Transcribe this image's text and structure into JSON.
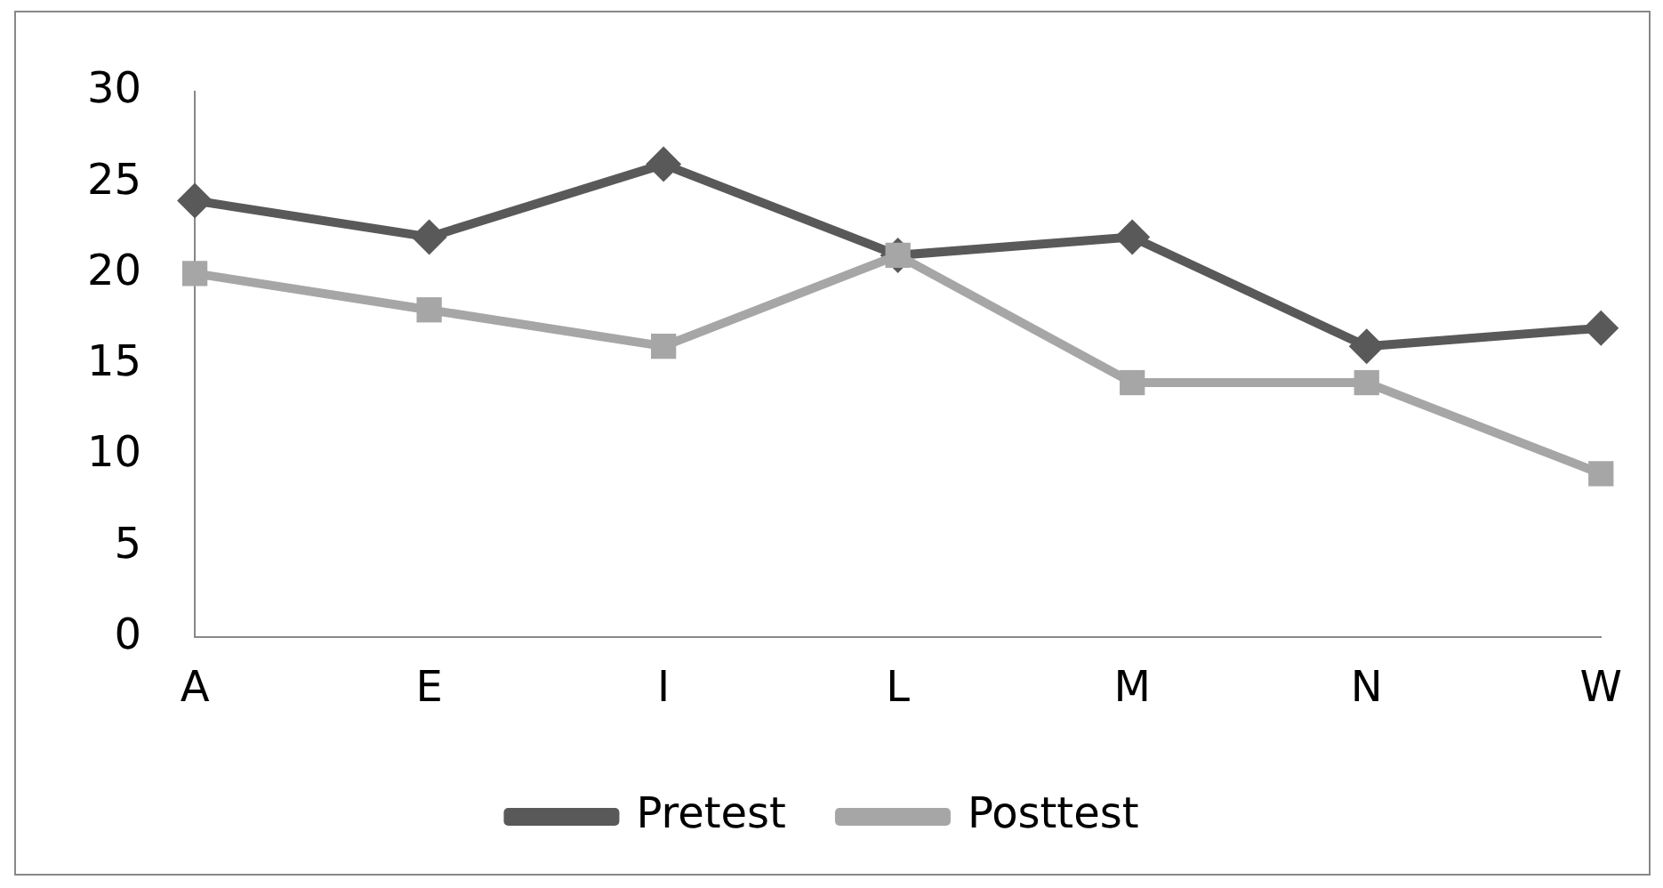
{
  "chart_data": {
    "type": "line",
    "categories": [
      "A",
      "E",
      "I",
      "L",
      "M",
      "N",
      "W"
    ],
    "series": [
      {
        "name": "Pretest",
        "color": "#595959",
        "marker": "diamond",
        "values": [
          24,
          22,
          26,
          21,
          22,
          16,
          17
        ]
      },
      {
        "name": "Posttest",
        "color": "#a6a6a6",
        "marker": "square",
        "values": [
          20,
          18,
          16,
          21,
          14,
          14,
          9
        ]
      }
    ],
    "ylim": [
      0,
      30
    ],
    "yticks": [
      0,
      5,
      10,
      15,
      20,
      25,
      30
    ],
    "grid": false,
    "legend": "bottom",
    "line_style": "solid"
  }
}
